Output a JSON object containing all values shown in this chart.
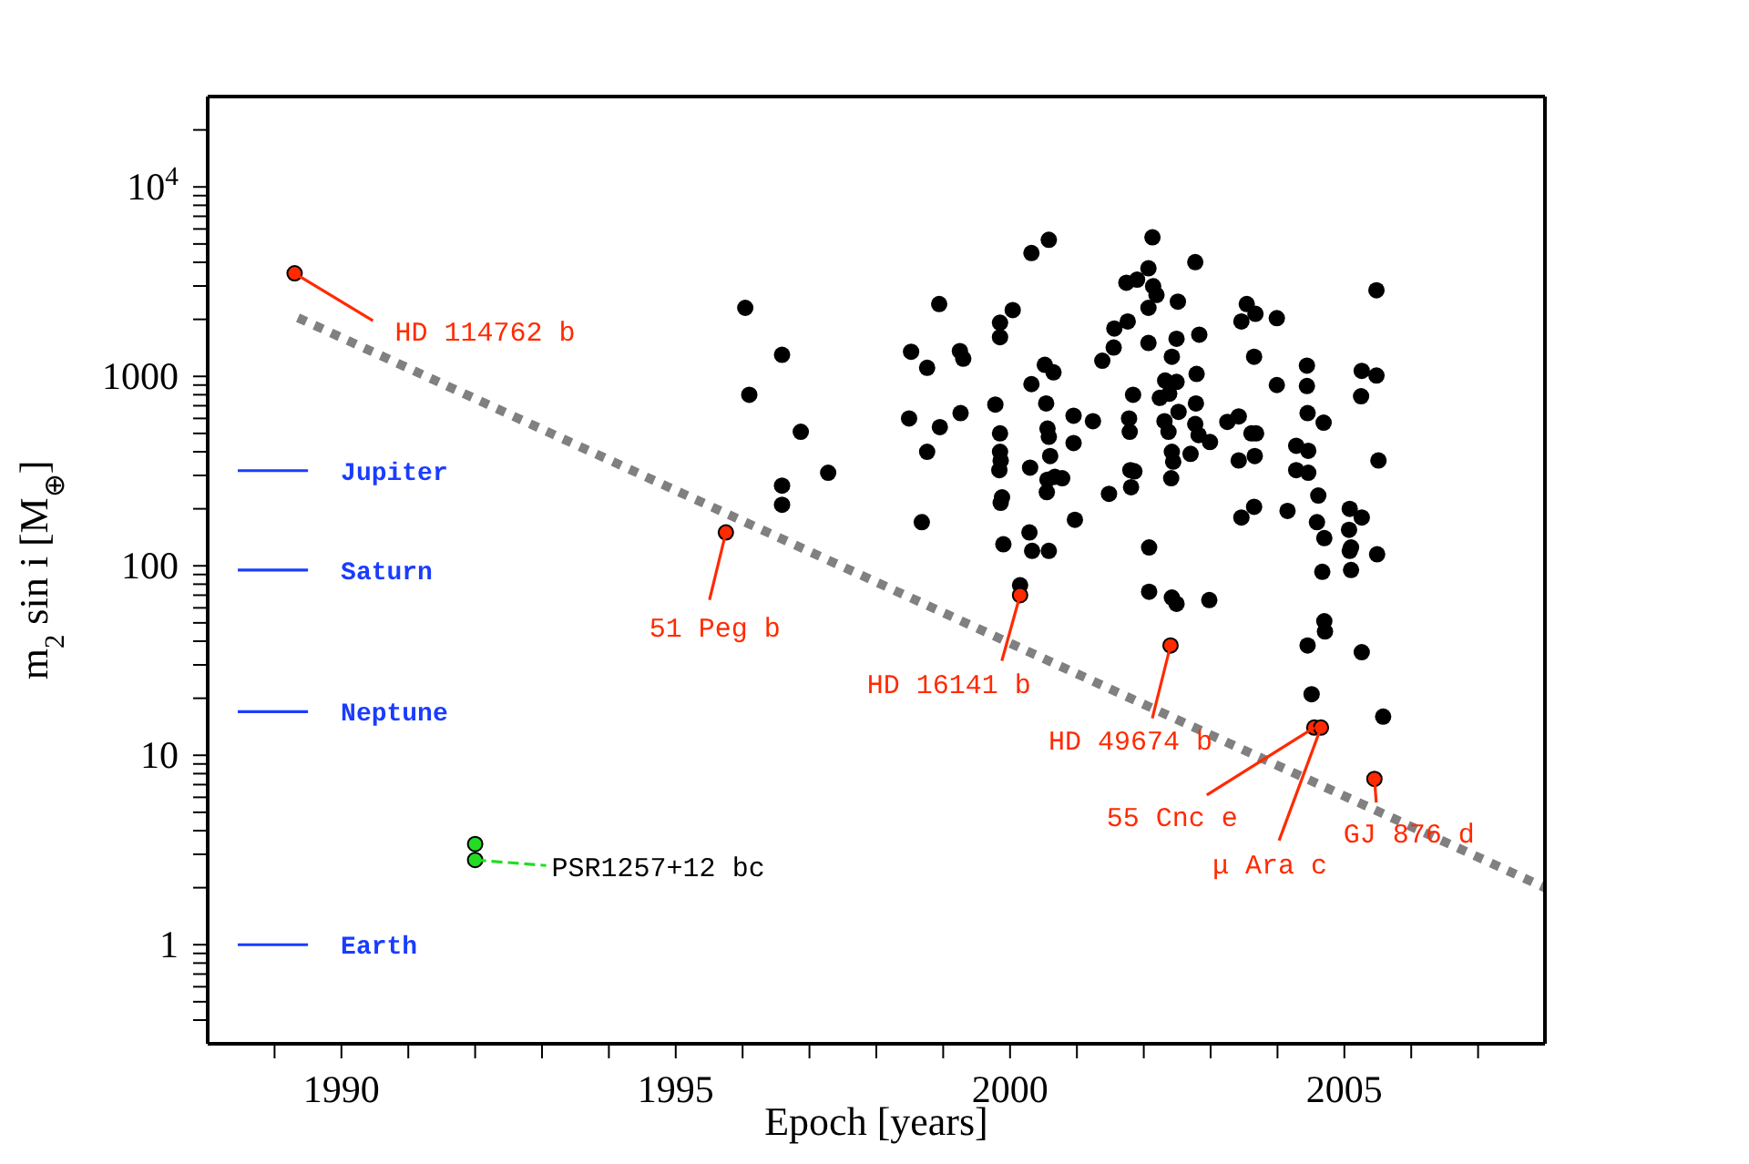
{
  "chart_data": {
    "type": "scatter",
    "marker": "circle",
    "xlabel": "Epoch [years]",
    "ylabel": "m$_{2}$ sin i [M$_{⊕}$]",
    "log": "y",
    "xlim": [
      1988,
      2008
    ],
    "xticks": [
      {
        "value": 1989,
        "label": null
      },
      1990,
      {
        "value": 1991,
        "label": null
      },
      {
        "value": 1992,
        "label": null
      },
      {
        "value": 1993,
        "label": null
      },
      {
        "value": 1994,
        "label": null
      },
      1995,
      {
        "value": 1996,
        "label": null
      },
      {
        "value": 1997,
        "label": null
      },
      {
        "value": 1998,
        "label": null
      },
      {
        "value": 1999,
        "label": null
      },
      2000,
      {
        "value": 2001,
        "label": null
      },
      {
        "value": 2002,
        "label": null
      },
      {
        "value": 2003,
        "label": null
      },
      {
        "value": 2004,
        "label": null
      },
      2005,
      {
        "value": 2006,
        "label": null
      },
      {
        "value": 2007,
        "label": null
      }
    ],
    "ylim": [
      0.3,
      30000
    ],
    "yticks": [
      {
        "value": 0.4,
        "label": null
      },
      {
        "value": 0.5,
        "label": null
      },
      {
        "value": 0.6,
        "label": null
      },
      {
        "value": 0.7,
        "label": null
      },
      {
        "value": 0.8,
        "label": null
      },
      {
        "value": 0.9,
        "label": null
      },
      1,
      {
        "value": 2,
        "label": null
      },
      {
        "value": 3,
        "label": null
      },
      {
        "value": 4,
        "label": null
      },
      {
        "value": 5,
        "label": null
      },
      {
        "value": 6,
        "label": null
      },
      {
        "value": 7,
        "label": null
      },
      {
        "value": 8,
        "label": null
      },
      {
        "value": 9,
        "label": null
      },
      10,
      {
        "value": 20,
        "label": null
      },
      {
        "value": 30,
        "label": null
      },
      {
        "value": 40,
        "label": null
      },
      {
        "value": 50,
        "label": null
      },
      {
        "value": 60,
        "label": null
      },
      {
        "value": 70,
        "label": null
      },
      {
        "value": 80,
        "label": null
      },
      {
        "value": 90,
        "label": null
      },
      100,
      {
        "value": 200,
        "label": null
      },
      {
        "value": 300,
        "label": null
      },
      {
        "value": 400,
        "label": null
      },
      {
        "value": 500,
        "label": null
      },
      {
        "value": 600,
        "label": null
      },
      {
        "value": 700,
        "label": null
      },
      {
        "value": 800,
        "label": null
      },
      {
        "value": 900,
        "label": null
      },
      1000,
      {
        "value": 2000,
        "label": null
      },
      {
        "value": 3000,
        "label": null
      },
      {
        "value": 4000,
        "label": null
      },
      {
        "value": 5000,
        "label": null
      },
      {
        "value": 6000,
        "label": null
      },
      {
        "value": 7000,
        "label": null
      },
      {
        "value": 8000,
        "label": null
      },
      {
        "value": 9000,
        "label": null
      },
      {
        "value": 10000,
        "label": "10$^{4}$"
      },
      {
        "value": 20000,
        "label": null
      }
    ],
    "series": [
      {
        "color": "#000000",
        "x": [
          2000.58,
          2000.32,
          2002.13,
          2002.77,
          2001.74,
          2001.9,
          2002.07,
          2002.14,
          2002.19,
          2002.07,
          2002.51,
          1998.94,
          2000.04,
          1999.85,
          1999.85,
          1998.52,
          1998.76,
          1999.25,
          1999.3,
          2001.56,
          2001.76,
          2001.55,
          2001.38,
          2002.07,
          2002.49,
          2002.83,
          2002.42,
          2003.54,
          2003.67,
          2003.46,
          2003.99,
          2005.48,
          2003.65,
          2004.44,
          2005.26,
          2005.48,
          2003.99,
          2004.44,
          2005.25,
          2000.52,
          2000.65,
          2000.32,
          2001.84,
          2002.32,
          2002.49,
          2002.79,
          2002.24,
          2002.38,
          2002.78,
          2000.54,
          1999.78,
          1998.49,
          1998.95,
          1999.26,
          1999.85,
          2000.56,
          2000.58,
          2000.95,
          2001.24,
          2001.78,
          2001.79,
          2002.31,
          2002.37,
          2002.52,
          2002.77,
          2002.82,
          2002.99,
          2003.25,
          2003.42,
          2003.61,
          2003.68,
          1999.85,
          1999.86,
          1999.84,
          2000.3,
          2000.6,
          2000.95,
          2001.8,
          2001.86,
          2001.81,
          2001.48,
          2002.42,
          2002.44,
          2002.41,
          2002.7,
          2003.42,
          2003.66,
          2004.28,
          2004.46,
          2004.28,
          2004.46,
          2004.45,
          2004.69,
          2005.51,
          1998.76,
          2000.56,
          2000.67,
          2000.78,
          2000.55,
          1999.88,
          1999.86,
          2004.61,
          2003.46,
          2003.65,
          2004.15,
          2004.59,
          2005.08,
          2005.26,
          2005.07,
          2004.7,
          2005.1,
          2005.08,
          2005.49,
          2004.67,
          2005.1,
          1998.68,
          2000.97,
          2000.29,
          1999.9,
          2000.33,
          2000.58,
          2002.08,
          2002.08,
          2002.42,
          2002.98,
          2000.15,
          2002.49,
          2004.7,
          2004.71,
          2004.45,
          2005.26,
          2004.51,
          2005.58,
          1996.04,
          1996.59,
          1996.1,
          1996.87,
          1997.28,
          1996.59,
          1996.59
        ],
        "values": [
          5260,
          4480,
          5420,
          4010,
          3120,
          3240,
          3720,
          2990,
          2690,
          2300,
          2480,
          2410,
          2240,
          1920,
          1610,
          1350,
          1110,
          1360,
          1240,
          1790,
          1950,
          1420,
          1210,
          1500,
          1580,
          1660,
          1270,
          2410,
          2140,
          1950,
          2030,
          2850,
          1270,
          1140,
          1070,
          1010,
          900,
          890,
          785,
          1150,
          1050,
          910,
          800,
          950,
          935,
          1030,
          770,
          810,
          720,
          720,
          710,
          600,
          540,
          640,
          500,
          530,
          480,
          620,
          580,
          600,
          510,
          580,
          510,
          650,
          560,
          490,
          450,
          575,
          615,
          500,
          500,
          400,
          360,
          320,
          330,
          380,
          445,
          320,
          315,
          260,
          240,
          400,
          355,
          290,
          390,
          360,
          380,
          430,
          405,
          320,
          310,
          640,
          570,
          360,
          400,
          285,
          295,
          290,
          245,
          230,
          215,
          235,
          180,
          205,
          195,
          170,
          200,
          180,
          155,
          140,
          125,
          120,
          115,
          93,
          95,
          170,
          175,
          150,
          130,
          120,
          120,
          125,
          73,
          68,
          66,
          79,
          63,
          51,
          45,
          38,
          35,
          21,
          16,
          2300,
          1300,
          800,
          510,
          310,
          265,
          210
        ]
      },
      {
        "color": "#ff2a00",
        "x": [
          1989.3,
          1995.75,
          2000.15,
          2002.4,
          2004.55,
          2004.65,
          2005.45
        ],
        "values": [
          3500,
          150,
          70,
          38,
          14,
          14,
          7.5
        ]
      },
      {
        "color": "#22dd22",
        "x": [
          1992,
          1992
        ],
        "values": [
          3.4,
          2.8
        ]
      },
      {
        "type": "line",
        "name": "Jupiter",
        "color": "#1a3cff",
        "marker": "none",
        "line_style": "solid",
        "x": [
          1988.45,
          1989.5
        ],
        "values": [
          318,
          318
        ]
      },
      {
        "type": "line",
        "name": "Saturn",
        "color": "#1a3cff",
        "marker": "none",
        "line_style": "solid",
        "x": [
          1988.45,
          1989.5
        ],
        "values": [
          95,
          95
        ]
      },
      {
        "type": "line",
        "name": "Neptune",
        "color": "#1a3cff",
        "marker": "none",
        "line_style": "solid",
        "x": [
          1988.45,
          1989.5
        ],
        "values": [
          17,
          17
        ]
      },
      {
        "type": "line",
        "name": "Earth",
        "color": "#1a3cff",
        "marker": "none",
        "line_style": "solid",
        "x": [
          1988.45,
          1989.5
        ],
        "values": [
          1,
          1
        ]
      },
      {
        "type": "line",
        "color": "#808080",
        "marker": "none",
        "line_style": "dotted",
        "x": [
          1989.35,
          2008
        ],
        "values": [
          2040,
          2.0
        ]
      }
    ],
    "annotations": [
      {
        "text": "HD 114762 b",
        "x": 1989.3,
        "y": 3500
      },
      {
        "text": "51 Peg b",
        "x": 1995.75,
        "y": 150
      },
      {
        "text": "HD 16141 b",
        "x": 2000.15,
        "y": 70
      },
      {
        "text": "HD 49674 b",
        "x": 2002.4,
        "y": 38
      },
      {
        "text": "55 Cnc e",
        "x": 2004.55,
        "y": 14
      },
      {
        "text": "μ Ara c",
        "x": 2004.65,
        "y": 14
      },
      {
        "text": "GJ 876 d",
        "x": 2005.45,
        "y": 7.5
      },
      {
        "text": "PSR1257+12 bc",
        "x": 1992,
        "y": 2.8
      }
    ]
  }
}
